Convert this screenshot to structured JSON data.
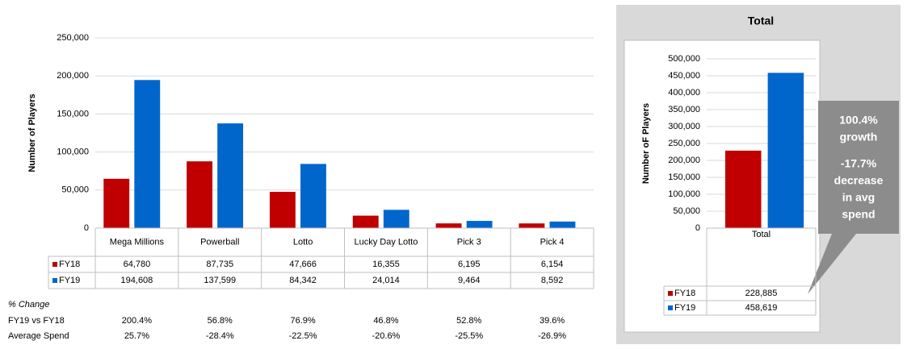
{
  "chart_data": [
    {
      "type": "bar",
      "y_label": "Number of Players",
      "categories": [
        "Mega Millions",
        "Powerball",
        "Lotto",
        "Lucky Day Lotto",
        "Pick 3",
        "Pick 4"
      ],
      "series": [
        {
          "name": "FY18",
          "color": "#c00000",
          "values": [
            64780,
            87735,
            47666,
            16355,
            6195,
            6154
          ],
          "value_labels": [
            "64,780",
            "87,735",
            "47,666",
            "16,355",
            "6,195",
            "6,154"
          ]
        },
        {
          "name": "FY19",
          "color": "#0066cc",
          "values": [
            194608,
            137599,
            84342,
            24014,
            9464,
            8592
          ],
          "value_labels": [
            "194,608",
            "137,599",
            "84,342",
            "24,014",
            "9,464",
            "8,592"
          ]
        }
      ],
      "ylim": [
        0,
        250000
      ],
      "yticks": [
        0,
        {
          "value": 50000,
          "label": "50,000"
        },
        {
          "value": 100000,
          "label": "100,000"
        },
        {
          "value": 150000,
          "label": "150,000"
        },
        {
          "value": 200000,
          "label": "200,000"
        },
        {
          "value": 250000,
          "label": "250,000"
        }
      ],
      "grid": true,
      "change_table": {
        "title": "% Change",
        "rows": [
          {
            "label": "FY19 vs FY18",
            "values": [
              "200.4%",
              "56.8%",
              "76.9%",
              "46.8%",
              "52.8%",
              "39.6%"
            ]
          },
          {
            "label": "Average Spend",
            "values": [
              "25.7%",
              "-28.4%",
              "-22.5%",
              "-20.6%",
              "-25.5%",
              "-26.9%"
            ]
          }
        ]
      }
    },
    {
      "type": "bar",
      "title": "Total",
      "y_label": "Number oF Players",
      "categories": [
        "Total"
      ],
      "series": [
        {
          "name": "FY18",
          "color": "#c00000",
          "values": [
            228885
          ],
          "value_labels": [
            "228,885"
          ]
        },
        {
          "name": "FY19",
          "color": "#0066cc",
          "values": [
            458619
          ],
          "value_labels": [
            "458,619"
          ]
        }
      ],
      "ylim": [
        0,
        500000
      ],
      "yticks": [
        0,
        {
          "value": 50000,
          "label": "50,000"
        },
        {
          "value": 100000,
          "label": "100,000"
        },
        {
          "value": 150000,
          "label": "150,000"
        },
        {
          "value": 200000,
          "label": "200,000"
        },
        {
          "value": 250000,
          "label": "250,000"
        },
        {
          "value": 300000,
          "label": "300,000"
        },
        {
          "value": 350000,
          "label": "350,000"
        },
        {
          "value": 400000,
          "label": "400,000"
        },
        {
          "value": 450000,
          "label": "450,000"
        },
        {
          "value": 500000,
          "label": "500,000"
        }
      ],
      "grid": true,
      "annotation": [
        "100.4%",
        "growth",
        "-17.7%",
        "decrease",
        "in avg",
        "spend"
      ]
    }
  ]
}
